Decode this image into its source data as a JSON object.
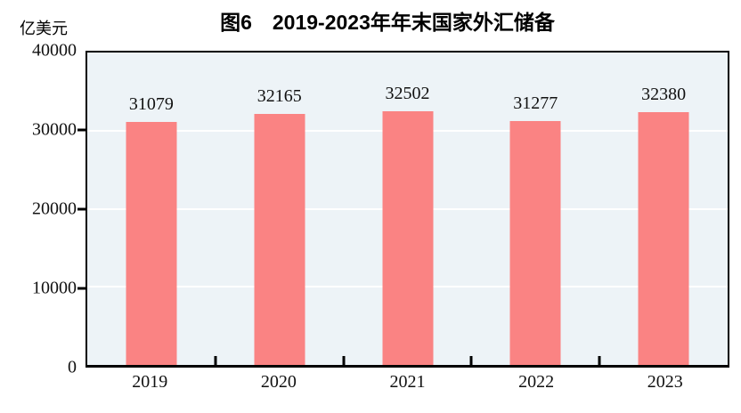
{
  "header": {
    "title": "图6　2019-2023年年末国家外汇储备",
    "unit_label": "亿美元"
  },
  "chart_data": {
    "type": "bar",
    "title": "图6　2019-2023年年末国家外汇储备",
    "ylabel": "亿美元",
    "xlabel": "",
    "categories": [
      "2019",
      "2020",
      "2021",
      "2022",
      "2023"
    ],
    "values": [
      31079,
      32165,
      32502,
      31277,
      32380
    ],
    "ylim": [
      0,
      40000
    ],
    "yticks": [
      0,
      10000,
      20000,
      30000,
      40000
    ],
    "grid": true,
    "legend_position": "none",
    "value_labels_shown": true,
    "colors": {
      "bar": "#fa8383",
      "plot_background": "#edf3f7",
      "gridline": "#ffffff",
      "axis": "#000000",
      "text": "#111111"
    }
  }
}
